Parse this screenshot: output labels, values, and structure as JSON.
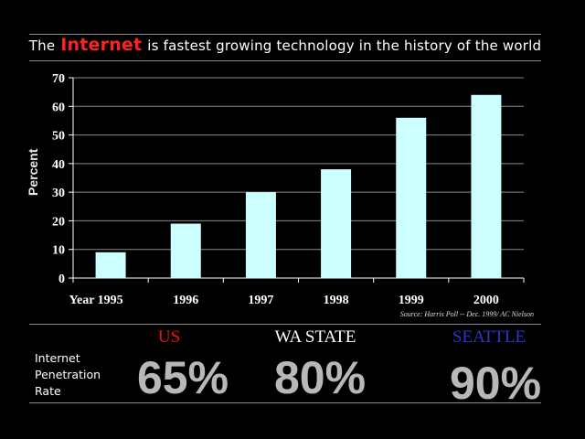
{
  "title": {
    "prefix": "The",
    "highlight": "Internet",
    "suffix": "is fastest growing technology in the history of the world"
  },
  "chart_data": {
    "type": "bar",
    "categories": [
      "1995",
      "1996",
      "1997",
      "1998",
      "1999",
      "2000"
    ],
    "x_prefix": "Year",
    "values": [
      9,
      19,
      30,
      38,
      56,
      64
    ],
    "ylabel": "Percent",
    "xlabel": "",
    "ylim": [
      0,
      70
    ],
    "yticks": [
      0,
      10,
      20,
      30,
      40,
      50,
      60,
      70
    ],
    "grid": true,
    "bar_color": "#ccffff",
    "source": "Source: Harris Poll -- Dec. 1999/ AC Nielson"
  },
  "penetration": {
    "label_lines": [
      "Internet",
      "Penetration",
      "Rate"
    ],
    "regions": [
      {
        "name": "US",
        "value": "65%",
        "color": "#ee1111"
      },
      {
        "name": "WA STATE",
        "value": "80%",
        "color": "#ffffff"
      },
      {
        "name": "SEATTLE",
        "value": "90%",
        "color": "#3333cc"
      }
    ]
  }
}
